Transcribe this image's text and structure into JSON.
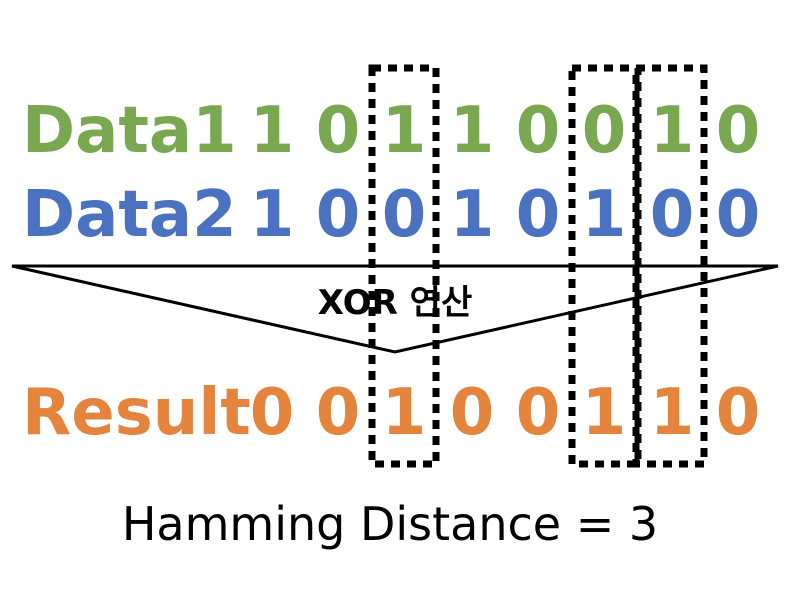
{
  "rows": [
    {
      "label": "Data1",
      "bits": [
        "1",
        "0",
        "1",
        "1",
        "0",
        "0",
        "1",
        "0"
      ],
      "color": "#7aa851"
    },
    {
      "label": "Data2",
      "bits": [
        "1",
        "0",
        "0",
        "1",
        "0",
        "1",
        "0",
        "0"
      ],
      "color": "#4a72c0"
    },
    {
      "label": "Result",
      "bits": [
        "0",
        "0",
        "1",
        "0",
        "0",
        "1",
        "1",
        "0"
      ],
      "color": "#e5843d"
    }
  ],
  "operation_label": "XOR 연산",
  "highlighted_bit_positions": [
    3,
    6,
    7
  ],
  "caption": "Hamming Distance = 3",
  "colors": {
    "data1": "#7aa851",
    "data2": "#4a72c0",
    "result": "#e5843d",
    "arrow_stroke": "#000000",
    "box_stroke": "#000000"
  }
}
